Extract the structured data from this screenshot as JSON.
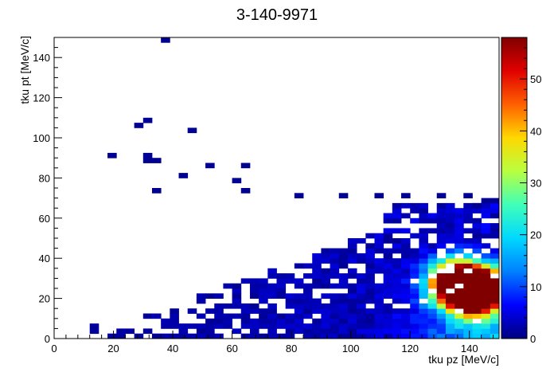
{
  "chart_data": {
    "type": "heatmap",
    "title": "3-140-9971",
    "xlabel": "tku pz [MeV/c]",
    "ylabel": "tku pt [MeV/c]",
    "xlim": [
      0,
      150
    ],
    "ylim": [
      0,
      150
    ],
    "zlim": [
      0,
      58
    ],
    "bin_width_x": 3,
    "bin_width_y": 2.5,
    "x_ticks": [
      "0",
      "20",
      "40",
      "60",
      "80",
      "100",
      "120",
      "140"
    ],
    "y_ticks": [
      "0",
      "20",
      "40",
      "60",
      "80",
      "100",
      "120",
      "140"
    ],
    "z_ticks": [
      "0",
      "10",
      "20",
      "30",
      "40",
      "50"
    ],
    "colormap": [
      "#00007f",
      "#0000ff",
      "#0080ff",
      "#00d8ff",
      "#40ffb8",
      "#b8ff40",
      "#ffd800",
      "#ff6000",
      "#e00000",
      "#800000"
    ],
    "grid": false,
    "outlier_points": [
      [
        37.5,
        148.75
      ],
      [
        31.5,
        108.75
      ],
      [
        28.5,
        106.25
      ],
      [
        46.5,
        103.75
      ],
      [
        19.5,
        91.25
      ],
      [
        31.5,
        91.25
      ],
      [
        31.5,
        88.75
      ],
      [
        34.5,
        88.75
      ],
      [
        52.5,
        86.25
      ],
      [
        64.5,
        86.25
      ],
      [
        43.5,
        81.25
      ],
      [
        61.5,
        78.75
      ],
      [
        34.5,
        73.75
      ],
      [
        64.5,
        73.75
      ],
      [
        118.5,
        71.25
      ],
      [
        139.5,
        71.25
      ],
      [
        109.5,
        71.25
      ],
      [
        97.5,
        71.25
      ],
      [
        82.5,
        71.25
      ],
      [
        130.5,
        71.25
      ],
      [
        148.5,
        68.75
      ],
      [
        145.5,
        68.75
      ],
      [
        142.5,
        66.25
      ]
    ],
    "cluster_cores": [
      [
        142.5,
        25,
        58
      ],
      [
        139.5,
        22.5,
        52
      ],
      [
        136.5,
        27.5,
        48
      ],
      [
        145.5,
        20,
        44
      ],
      [
        142.5,
        30,
        40
      ],
      [
        133.5,
        22.5,
        38
      ],
      [
        139.5,
        15,
        35
      ],
      [
        136.5,
        32.5,
        32
      ],
      [
        145.5,
        27.5,
        36
      ],
      [
        130.5,
        27.5,
        30
      ],
      [
        148.5,
        25,
        28
      ],
      [
        133.5,
        35,
        24
      ]
    ]
  }
}
